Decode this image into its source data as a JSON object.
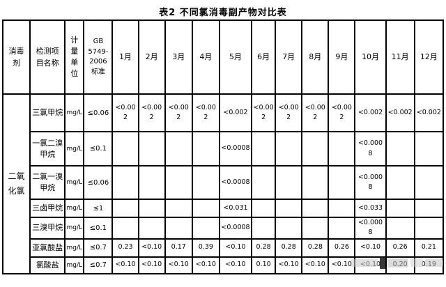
{
  "title": "表2 不同氯消毒副产物对比表",
  "table": {
    "headers": {
      "disinfectant": "消毒\n剂",
      "item": "检测项\n目名称",
      "unit": "计\n量\n单\n位",
      "standard": "GB\n5749-\n2006\n标准"
    },
    "months": [
      "1月",
      "2月",
      "3月",
      "4月",
      "5月",
      "6月",
      "7月",
      "8月",
      "9月",
      "10月",
      "11月",
      "12月"
    ],
    "disinfectant": "二氧\n化氯",
    "rows": [
      {
        "item": "三氯甲烷",
        "unit": "mg/L",
        "standard": "≤0.06",
        "values": [
          "<0.002",
          "<0.002",
          "<0.002",
          "<0.002",
          "<0.002",
          "<0.002",
          "<0.002",
          "<0.002",
          "<0.002",
          "<0.002",
          "<0.002",
          "<0.002"
        ]
      },
      {
        "item": "一氯二溴\n甲烷",
        "unit": "mg/L",
        "standard": "≤0.1",
        "values": [
          "",
          "",
          "",
          "",
          "<0.0008",
          "",
          "",
          "",
          "",
          "<0.0008",
          "",
          ""
        ]
      },
      {
        "item": "二氯一溴\n甲烷",
        "unit": "mg/L",
        "standard": "≤0.06",
        "values": [
          "",
          "",
          "",
          "",
          "<0.0008",
          "",
          "",
          "",
          "",
          "<0.0008",
          "",
          ""
        ]
      },
      {
        "item": "三卤甲烷",
        "unit": "mg/L",
        "standard": "≤1",
        "values": [
          "",
          "",
          "",
          "",
          "<0.031",
          "",
          "",
          "",
          "",
          "<0.033",
          "",
          ""
        ]
      },
      {
        "item": "三溴甲烷",
        "unit": "mg/L",
        "standard": "≤0.1",
        "values": [
          "",
          "",
          "",
          "",
          "<0.0008",
          "",
          "",
          "",
          "",
          "<0.0008",
          "",
          ""
        ]
      },
      {
        "item": "亚氯酸盐",
        "unit": "mg/L",
        "standard": "≤0.7",
        "values": [
          "0.23",
          "<0.10",
          "0.17",
          "0.39",
          "<0.10",
          "0.28",
          "0.28",
          "0.28",
          "0.26",
          "<0.10",
          "0.26",
          "0.21"
        ]
      },
      {
        "item": "氯酸盐",
        "unit": "mg/L",
        "standard": "≤0.7",
        "values": [
          "<0.10",
          "<0.10",
          "<0.10",
          "<0.10",
          "<0.10",
          "0.10",
          "<0.10",
          "<0.10",
          "<0.10",
          "<0.10",
          "0.20",
          "0.19"
        ]
      }
    ]
  }
}
